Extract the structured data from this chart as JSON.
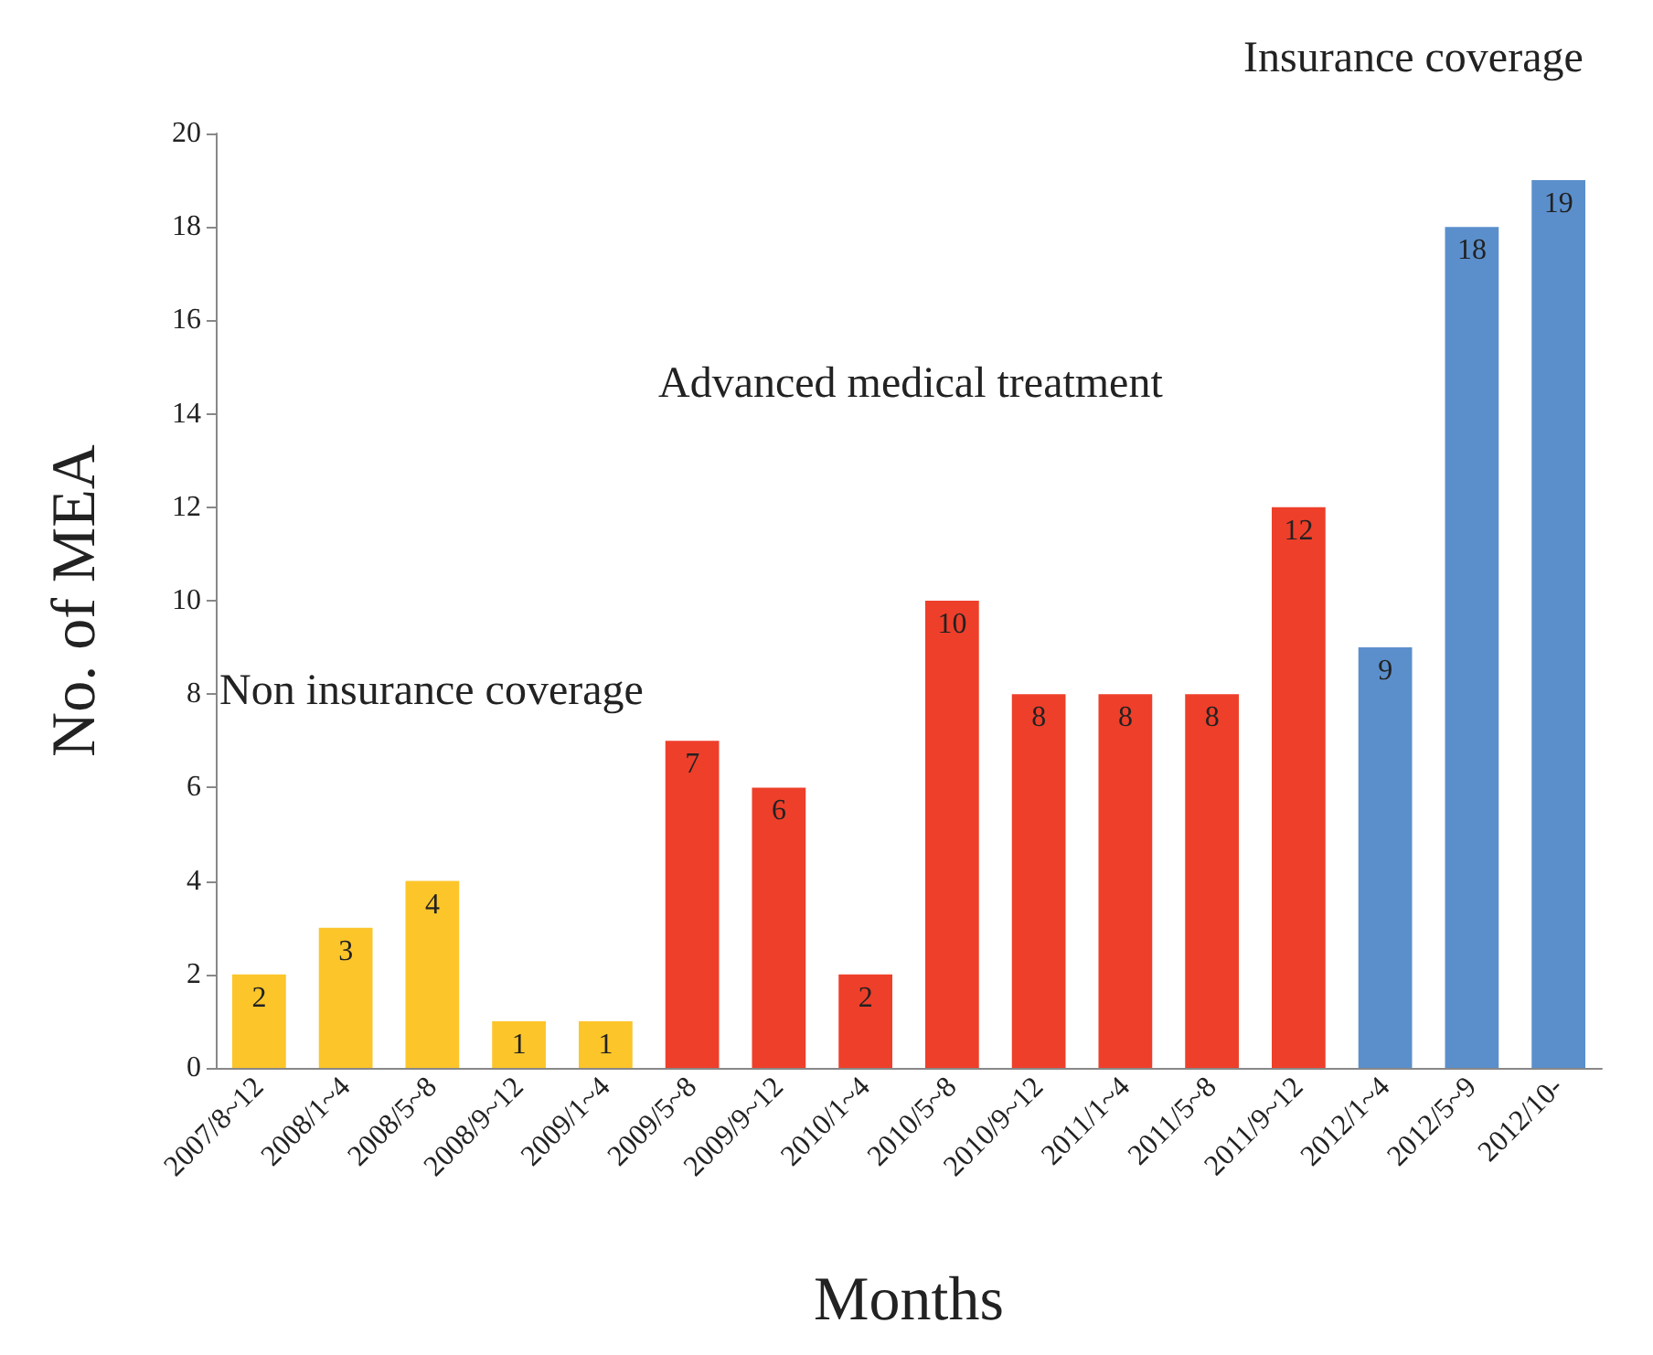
{
  "chart_data": {
    "type": "bar",
    "xlabel": "Months",
    "ylabel": "No. of MEA",
    "categories": [
      "2007/8~12",
      "2008/1~4",
      "2008/5~8",
      "2008/9~12",
      "2009/1~4",
      "2009/5~8",
      "2009/9~12",
      "2010/1~4",
      "2010/5~8",
      "2010/9~12",
      "2011/1~4",
      "2011/5~8",
      "2011/9~12",
      "2012/1~4",
      "2012/5~9",
      "2012/10-"
    ],
    "values": [
      2,
      3,
      4,
      1,
      1,
      7,
      6,
      2,
      10,
      8,
      8,
      8,
      12,
      9,
      18,
      19
    ],
    "colors": [
      "#fcc52a",
      "#fcc52a",
      "#fcc52a",
      "#fcc52a",
      "#fcc52a",
      "#ee3f2a",
      "#ee3f2a",
      "#ee3f2a",
      "#ee3f2a",
      "#ee3f2a",
      "#ee3f2a",
      "#ee3f2a",
      "#ee3f2a",
      "#5b8fcc",
      "#5b8fcc",
      "#5b8fcc"
    ],
    "ylim": [
      0,
      20
    ],
    "yticks": [
      0,
      2,
      4,
      6,
      8,
      10,
      12,
      14,
      16,
      18,
      20
    ],
    "grid": false,
    "data_labels": true,
    "annotations": [
      "Non insurance coverage",
      "Advanced medical treatment",
      "Insurance coverage"
    ]
  }
}
